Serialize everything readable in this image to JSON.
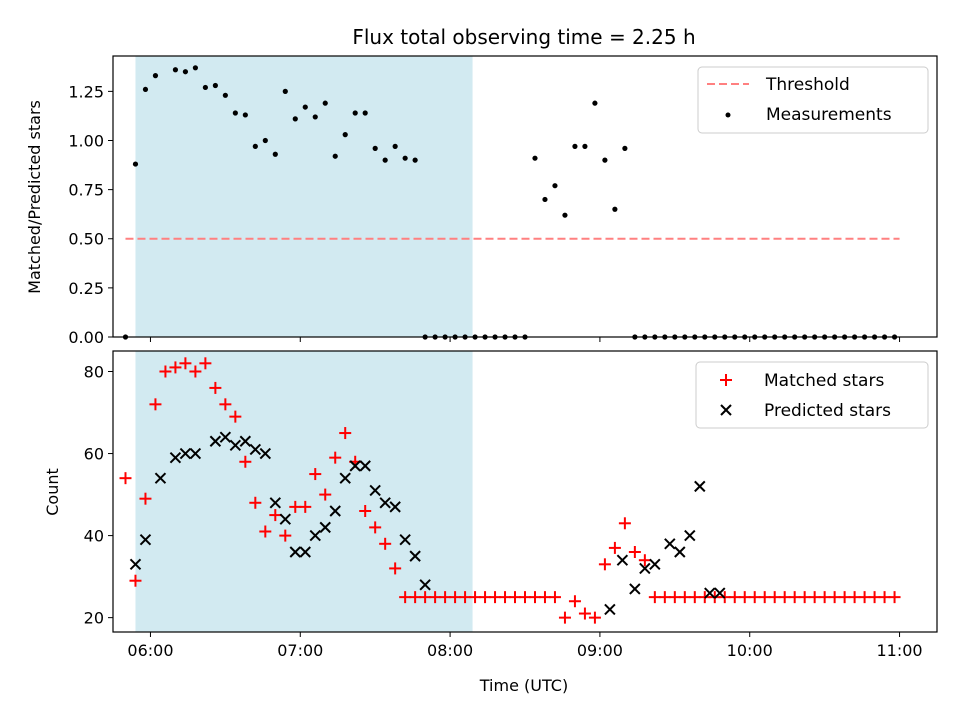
{
  "title": "Flux total observing time = 2.25 h",
  "colors": {
    "shade": "#add8e6",
    "threshold": "#ff8080",
    "measurement": "#000000",
    "matched": "#ff0000",
    "predicted": "#000000"
  },
  "chart_data": [
    {
      "type": "scatter",
      "title": "Flux total observing time = 2.25 h",
      "ylabel": "Matched/Predicted stars",
      "xlabel": "",
      "xlim": [
        "05:45",
        "11:15"
      ],
      "ylim": [
        0,
        1.43
      ],
      "yticks": [
        "0.00",
        "0.25",
        "0.50",
        "0.75",
        "1.00",
        "1.25"
      ],
      "xticks": [
        "06:00",
        "07:00",
        "08:00",
        "09:00",
        "10:00",
        "11:00"
      ],
      "shaded_interval": [
        "05:54",
        "08:09"
      ],
      "legend": {
        "position": "top-right",
        "entries": [
          "Threshold",
          "Measurements"
        ]
      },
      "threshold": {
        "name": "Threshold",
        "value": 0.5,
        "x_start": "05:50",
        "x_end": "11:00"
      },
      "series": [
        {
          "name": "Measurements",
          "x": [
            "05:50",
            "05:54",
            "05:58",
            "06:02",
            "06:10",
            "06:14",
            "06:18",
            "06:22",
            "06:26",
            "06:30",
            "06:34",
            "06:38",
            "06:42",
            "06:46",
            "06:50",
            "06:54",
            "06:58",
            "07:02",
            "07:06",
            "07:10",
            "07:14",
            "07:18",
            "07:22",
            "07:26",
            "07:30",
            "07:34",
            "07:38",
            "07:42",
            "07:46",
            "07:50",
            "07:54",
            "07:58",
            "08:02",
            "08:06",
            "08:10",
            "08:14",
            "08:18",
            "08:22",
            "08:26",
            "08:30",
            "08:34",
            "08:38",
            "08:42",
            "08:46",
            "08:50",
            "08:54",
            "08:58",
            "09:02",
            "09:06",
            "09:10",
            "09:14",
            "09:18",
            "09:22",
            "09:26",
            "09:30",
            "09:34",
            "09:38",
            "09:42",
            "09:46",
            "09:50",
            "09:54",
            "09:58",
            "10:02",
            "10:06",
            "10:10",
            "10:14",
            "10:18",
            "10:22",
            "10:26",
            "10:30",
            "10:34",
            "10:38",
            "10:42",
            "10:46",
            "10:50",
            "10:54",
            "10:58"
          ],
          "y": [
            0.0,
            0.88,
            1.26,
            1.33,
            1.36,
            1.35,
            1.37,
            1.27,
            1.28,
            1.23,
            1.14,
            1.13,
            0.97,
            1.0,
            0.93,
            1.25,
            1.11,
            1.17,
            1.12,
            1.19,
            0.92,
            1.03,
            1.14,
            1.14,
            0.96,
            0.9,
            0.97,
            0.91,
            0.9,
            0.0,
            0.0,
            0.0,
            0.0,
            0.0,
            0.0,
            0.0,
            0.0,
            0.0,
            0.0,
            0.0,
            0.91,
            0.7,
            0.77,
            0.62,
            0.97,
            0.97,
            1.19,
            0.9,
            0.65,
            0.96,
            0.0,
            0.0,
            0.0,
            0.0,
            0.0,
            0.0,
            0.0,
            0.0,
            0.0,
            0.0,
            0.0,
            0.0,
            0.0,
            0.0,
            0.0,
            0.0,
            0.0,
            0.0,
            0.0,
            0.0,
            0.0,
            0.0,
            0.0,
            0.0,
            0.0,
            0.0,
            0.0
          ]
        }
      ]
    },
    {
      "type": "scatter",
      "xlabel": "Time (UTC)",
      "ylabel": "Count",
      "xlim": [
        "05:45",
        "11:15"
      ],
      "ylim": [
        16.5,
        85
      ],
      "yticks": [
        "20",
        "40",
        "60",
        "80"
      ],
      "xticks": [
        "06:00",
        "07:00",
        "08:00",
        "09:00",
        "10:00",
        "11:00"
      ],
      "shaded_interval": [
        "05:54",
        "08:09"
      ],
      "legend": {
        "position": "top-right",
        "entries": [
          "Matched stars",
          "Predicted stars"
        ]
      },
      "series": [
        {
          "name": "Matched stars",
          "marker": "plus",
          "x": [
            "05:50",
            "05:54",
            "05:58",
            "06:02",
            "06:06",
            "06:10",
            "06:14",
            "06:18",
            "06:22",
            "06:26",
            "06:30",
            "06:34",
            "06:38",
            "06:42",
            "06:46",
            "06:50",
            "06:54",
            "06:58",
            "07:02",
            "07:06",
            "07:10",
            "07:14",
            "07:18",
            "07:22",
            "07:26",
            "07:30",
            "07:34",
            "07:38",
            "07:42",
            "07:46",
            "07:50",
            "07:54",
            "07:58",
            "08:02",
            "08:06",
            "08:10",
            "08:14",
            "08:18",
            "08:22",
            "08:26",
            "08:30",
            "08:34",
            "08:38",
            "08:42",
            "08:46",
            "08:50",
            "08:54",
            "08:58",
            "09:02",
            "09:06",
            "09:10",
            "09:14",
            "09:18",
            "09:22",
            "09:26",
            "09:30",
            "09:34",
            "09:38",
            "09:42",
            "09:46",
            "09:50",
            "09:54",
            "09:58",
            "10:02",
            "10:06",
            "10:10",
            "10:14",
            "10:18",
            "10:22",
            "10:26",
            "10:30",
            "10:34",
            "10:38",
            "10:42",
            "10:46",
            "10:50",
            "10:54",
            "10:58"
          ],
          "y": [
            54,
            29,
            49,
            72,
            80,
            81,
            82,
            80,
            82,
            76,
            72,
            69,
            58,
            48,
            41,
            45,
            40,
            47,
            47,
            55,
            50,
            59,
            65,
            58,
            46,
            42,
            38,
            32,
            25,
            25,
            25,
            25,
            25,
            25,
            25,
            25,
            25,
            25,
            25,
            25,
            25,
            25,
            25,
            25,
            20,
            24,
            21,
            20,
            33,
            37,
            43,
            36,
            34,
            25,
            25,
            25,
            25,
            25,
            25,
            25,
            25,
            25,
            25,
            25,
            25,
            25,
            25,
            25,
            25,
            25,
            25,
            25,
            25,
            25,
            25,
            25,
            25,
            25
          ]
        },
        {
          "name": "Predicted stars",
          "marker": "cross",
          "x": [
            "05:54",
            "05:58",
            "06:04",
            "06:10",
            "06:14",
            "06:18",
            "06:26",
            "06:30",
            "06:34",
            "06:38",
            "06:42",
            "06:46",
            "06:50",
            "06:54",
            "06:58",
            "07:02",
            "07:06",
            "07:10",
            "07:14",
            "07:18",
            "07:22",
            "07:26",
            "07:30",
            "07:34",
            "07:38",
            "07:42",
            "07:46",
            "07:50",
            "09:04",
            "09:09",
            "09:14",
            "09:18",
            "09:22",
            "09:28",
            "09:32",
            "09:36",
            "09:40",
            "09:44",
            "09:48"
          ],
          "y": [
            33,
            39,
            54,
            59,
            60,
            60,
            63,
            64,
            62,
            63,
            61,
            60,
            48,
            44,
            36,
            36,
            40,
            42,
            46,
            54,
            57,
            57,
            51,
            48,
            47,
            39,
            35,
            28,
            22,
            34,
            27,
            32,
            33,
            38,
            36,
            40,
            52,
            26,
            26
          ]
        }
      ]
    }
  ]
}
